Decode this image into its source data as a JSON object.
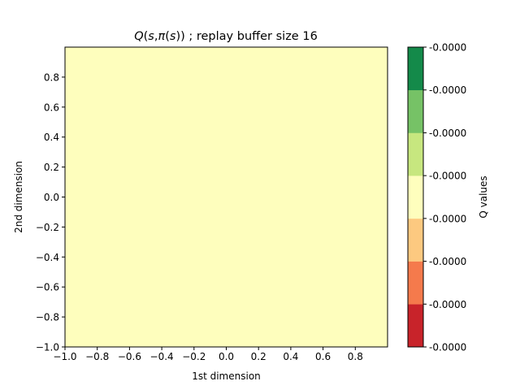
{
  "chart_data": {
    "type": "heatmap",
    "title": "Q(s,π(s)) ; replay buffer size 16",
    "title_parts": {
      "q": "Q",
      "open1": "(",
      "s1": "s",
      "comma": ",",
      "pi": "π",
      "open2": "(",
      "s2": "s",
      "close": "))",
      "rest": " ; replay buffer size 16"
    },
    "xlabel": "1st dimension",
    "ylabel": "2nd dimension",
    "xlim": [
      -1.0,
      1.0
    ],
    "ylim": [
      -1.0,
      1.0
    ],
    "grid": false,
    "x_tick_values": [
      -1.0,
      -0.8,
      -0.6,
      -0.4,
      -0.2,
      0.0,
      0.2,
      0.4,
      0.6,
      0.8
    ],
    "x_tick_labels": [
      "−1.0",
      "−0.8",
      "−0.6",
      "−0.4",
      "−0.2",
      "0.0",
      "0.2",
      "0.4",
      "0.6",
      "0.8"
    ],
    "y_tick_values": [
      -1.0,
      -0.8,
      -0.6,
      -0.4,
      -0.2,
      0.0,
      0.2,
      0.4,
      0.6,
      0.8
    ],
    "y_tick_labels": [
      "−1.0",
      "−0.8",
      "−0.6",
      "−0.4",
      "−0.2",
      "0.0",
      "0.2",
      "0.4",
      "0.6",
      "0.8"
    ],
    "field": {
      "x_range": [
        -1.0,
        1.0
      ],
      "y_range": [
        -1.0,
        1.0
      ],
      "value": "-0.0000",
      "color": "#fefebd"
    },
    "colorbar": {
      "label": "Q values",
      "levels": 8,
      "tick_labels": [
        "-0.0000",
        "-0.0000",
        "-0.0000",
        "-0.0000",
        "-0.0000",
        "-0.0000",
        "-0.0000",
        "-0.0000"
      ],
      "bands": [
        "#c8232a",
        "#f57a4c",
        "#fdc980",
        "#fefebd",
        "#c7e77f",
        "#76c266",
        "#148a4a"
      ]
    }
  }
}
